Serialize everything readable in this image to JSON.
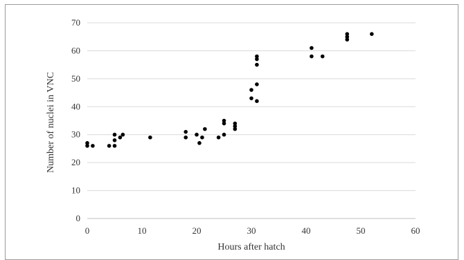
{
  "chart_data": {
    "type": "scatter",
    "title": "",
    "xlabel": "Hours after hatch",
    "ylabel": "Number of nuclei in VNC",
    "xlim": [
      0,
      60
    ],
    "ylim": [
      0,
      70
    ],
    "x_ticks": [
      0,
      10,
      20,
      30,
      40,
      50,
      60
    ],
    "y_ticks": [
      0,
      10,
      20,
      30,
      40,
      50,
      60,
      70
    ],
    "grid": "horizontal",
    "legend": "none",
    "marker_color": "#000000",
    "grid_color": "#d9d9d9",
    "series": [
      {
        "x": [
          0,
          0,
          1,
          4,
          5,
          5,
          5,
          6,
          6.5,
          11.5,
          18,
          18,
          20,
          20.5,
          21,
          21.5,
          24,
          25,
          25,
          25,
          27,
          27,
          27,
          30,
          30,
          31,
          31,
          31,
          31,
          31,
          41,
          41,
          43,
          47.5,
          47.5,
          47.5,
          52
        ],
        "y": [
          27,
          26,
          26,
          26,
          26,
          28,
          30,
          29,
          30,
          29,
          31,
          29,
          30,
          27,
          29,
          32,
          29,
          34,
          35,
          30,
          32,
          33,
          34,
          46,
          43,
          42,
          48,
          55,
          58,
          57,
          61,
          58,
          58,
          64,
          65,
          66,
          66
        ]
      }
    ]
  }
}
